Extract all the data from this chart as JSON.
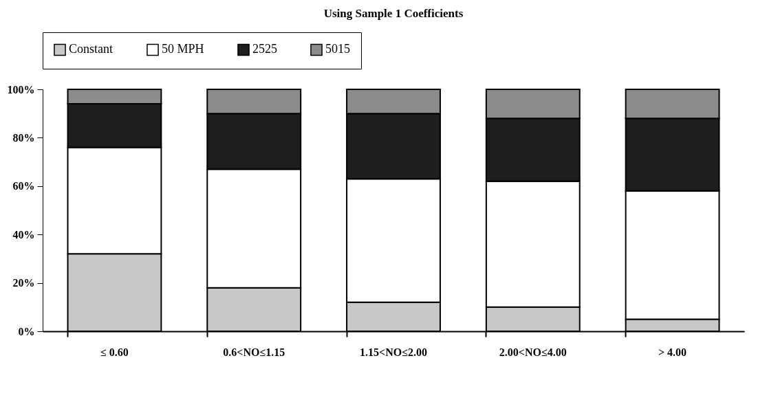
{
  "chart_data": {
    "type": "bar",
    "title": "Using Sample 1 Coefficients",
    "stacked": true,
    "legend": "top",
    "grid": false,
    "categories": [
      "≤ 0.60",
      "0.6<NO≤1.15",
      "1.15<NO≤2.00",
      "2.00<NO≤4.00",
      "> 4.00"
    ],
    "ylim": [
      0,
      100
    ],
    "yticks": [
      {
        "value": 0,
        "label": "0%"
      },
      {
        "value": 20,
        "label": "20%"
      },
      {
        "value": 40,
        "label": "40%"
      },
      {
        "value": 60,
        "label": "60%"
      },
      {
        "value": 80,
        "label": "80%"
      },
      {
        "value": 100,
        "label": "100%"
      }
    ],
    "series": [
      {
        "name": "Constant",
        "color": "#c8c8c8",
        "values": [
          32,
          18,
          12,
          10,
          5
        ]
      },
      {
        "name": "50 MPH",
        "color": "#ffffff",
        "values": [
          44,
          49,
          51,
          52,
          53
        ]
      },
      {
        "name": "2525",
        "color": "#1e1e1e",
        "values": [
          18,
          23,
          27,
          26,
          30
        ]
      },
      {
        "name": "5015",
        "color": "#8c8c8c",
        "values": [
          6,
          10,
          10,
          12,
          12
        ]
      }
    ]
  }
}
